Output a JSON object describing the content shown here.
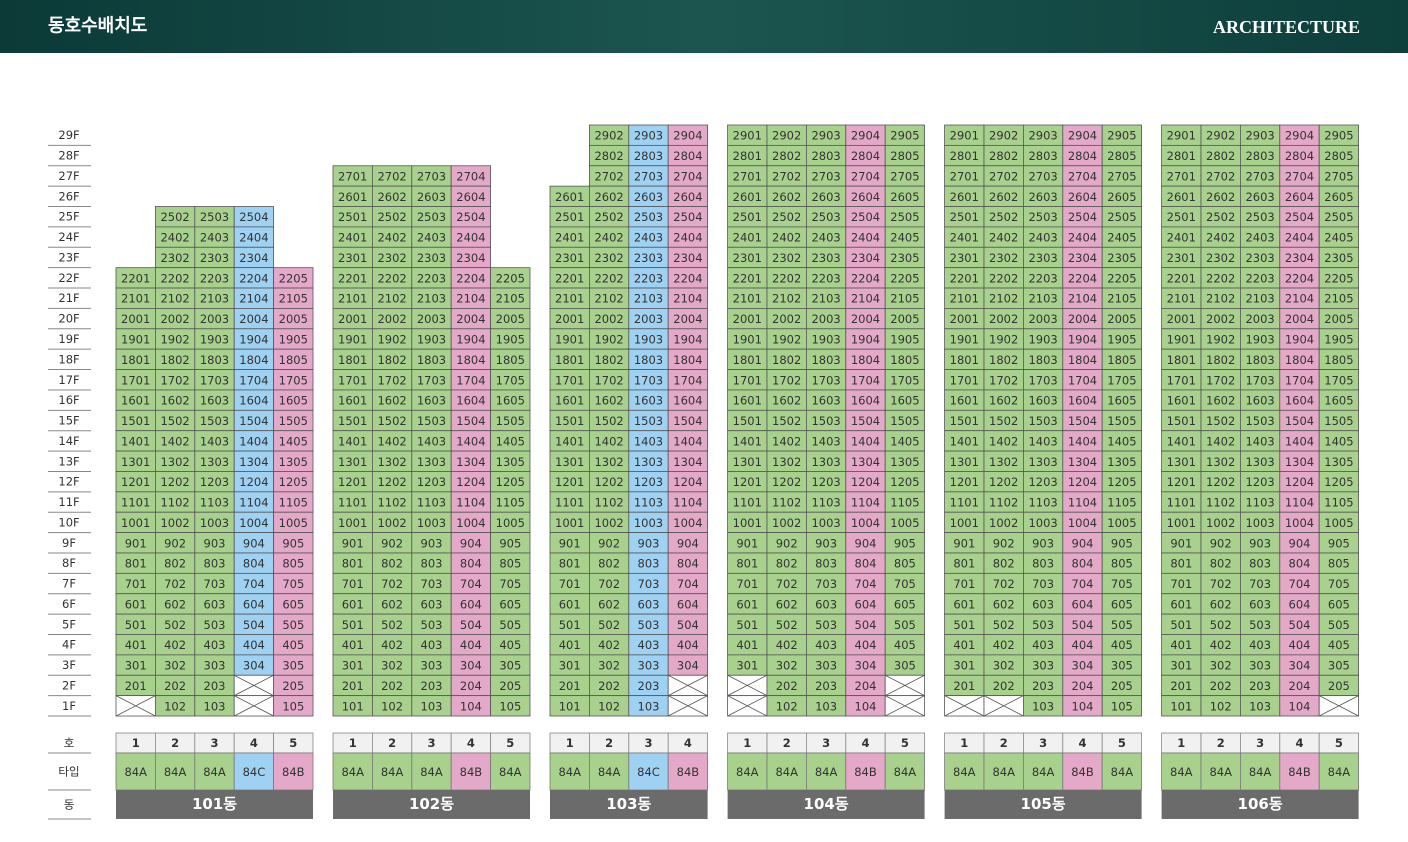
{
  "header": {
    "title": "동호수배치도",
    "subtitle": "ARCHITECTURE"
  },
  "labels": {
    "unit": "호",
    "type": "타입",
    "building": "동"
  },
  "type_colors": {
    "84A": "#a9d18e",
    "84B": "#e4a9c8",
    "84C": "#9fd2f2"
  },
  "floors": [
    "29F",
    "28F",
    "27F",
    "26F",
    "25F",
    "24F",
    "23F",
    "22F",
    "21F",
    "20F",
    "19F",
    "18F",
    "17F",
    "16F",
    "15F",
    "14F",
    "13F",
    "12F",
    "11F",
    "10F",
    "9F",
    "8F",
    "7F",
    "6F",
    "5F",
    "4F",
    "3F",
    "2F",
    "1F"
  ],
  "buildings": [
    {
      "name": "101동",
      "units": [
        "1",
        "2",
        "3",
        "4",
        "5"
      ],
      "types": [
        "84A",
        "84A",
        "84A",
        "84C",
        "84B"
      ],
      "columns": [
        [
          "2201",
          "2101",
          "2001",
          "1901",
          "1801",
          "1701",
          "1601",
          "1501",
          "1401",
          "1301",
          "1201",
          "1101",
          "1001",
          "901",
          "801",
          "701",
          "601",
          "501",
          "401",
          "301",
          "201",
          null
        ],
        [
          "2502",
          "2402",
          "2302",
          "2202",
          "2102",
          "2002",
          "1902",
          "1802",
          "1702",
          "1602",
          "1502",
          "1402",
          "1302",
          "1202",
          "1102",
          "1002",
          "902",
          "802",
          "702",
          "602",
          "502",
          "402",
          "302",
          "202",
          "102"
        ],
        [
          "2503",
          "2403",
          "2303",
          "2203",
          "2103",
          "2003",
          "1903",
          "1803",
          "1703",
          "1603",
          "1503",
          "1403",
          "1303",
          "1203",
          "1103",
          "1003",
          "903",
          "803",
          "703",
          "603",
          "503",
          "403",
          "303",
          "203",
          "103"
        ],
        [
          "2504",
          "2404",
          "2304",
          "2204",
          "2104",
          "2004",
          "1904",
          "1804",
          "1704",
          "1604",
          "1504",
          "1404",
          "1304",
          "1204",
          "1104",
          "1004",
          "904",
          "804",
          "704",
          "604",
          "504",
          "404",
          "304",
          null,
          null
        ],
        [
          "2205",
          "2105",
          "2005",
          "1905",
          "1805",
          "1705",
          "1605",
          "1505",
          "1405",
          "1305",
          "1205",
          "1105",
          "1005",
          "905",
          "805",
          "705",
          "605",
          "505",
          "405",
          "305",
          "205",
          "105"
        ]
      ]
    },
    {
      "name": "102동",
      "units": [
        "1",
        "2",
        "3",
        "4",
        "5"
      ],
      "types": [
        "84A",
        "84A",
        "84A",
        "84B",
        "84A"
      ],
      "columns": [
        [
          "2701",
          "2601",
          "2501",
          "2401",
          "2301",
          "2201",
          "2101",
          "2001",
          "1901",
          "1801",
          "1701",
          "1601",
          "1501",
          "1401",
          "1301",
          "1201",
          "1101",
          "1001",
          "901",
          "801",
          "701",
          "601",
          "501",
          "401",
          "301",
          "201",
          "101"
        ],
        [
          "2702",
          "2602",
          "2502",
          "2402",
          "2302",
          "2202",
          "2102",
          "2002",
          "1902",
          "1802",
          "1702",
          "1602",
          "1502",
          "1402",
          "1302",
          "1202",
          "1102",
          "1002",
          "902",
          "802",
          "702",
          "602",
          "502",
          "402",
          "302",
          "202",
          "102"
        ],
        [
          "2703",
          "2603",
          "2503",
          "2403",
          "2303",
          "2203",
          "2103",
          "2003",
          "1903",
          "1803",
          "1703",
          "1603",
          "1503",
          "1403",
          "1303",
          "1203",
          "1103",
          "1003",
          "903",
          "803",
          "703",
          "603",
          "503",
          "403",
          "303",
          "203",
          "103"
        ],
        [
          "2704",
          "2604",
          "2504",
          "2404",
          "2304",
          "2204",
          "2104",
          "2004",
          "1904",
          "1804",
          "1704",
          "1604",
          "1504",
          "1404",
          "1304",
          "1204",
          "1104",
          "1004",
          "904",
          "804",
          "704",
          "604",
          "504",
          "404",
          "304",
          "204",
          "104"
        ],
        [
          "2205",
          "2105",
          "2005",
          "1905",
          "1805",
          "1705",
          "1605",
          "1505",
          "1405",
          "1305",
          "1205",
          "1105",
          "1005",
          "905",
          "805",
          "705",
          "605",
          "505",
          "405",
          "305",
          "205",
          "105"
        ]
      ]
    },
    {
      "name": "103동",
      "units": [
        "1",
        "2",
        "3",
        "4"
      ],
      "types": [
        "84A",
        "84A",
        "84C",
        "84B"
      ],
      "columns": [
        [
          "2601",
          "2501",
          "2401",
          "2301",
          "2201",
          "2101",
          "2001",
          "1901",
          "1801",
          "1701",
          "1601",
          "1501",
          "1401",
          "1301",
          "1201",
          "1101",
          "1001",
          "901",
          "801",
          "701",
          "601",
          "501",
          "401",
          "301",
          "201",
          "101"
        ],
        [
          "2902",
          "2802",
          "2702",
          "2602",
          "2502",
          "2402",
          "2302",
          "2202",
          "2102",
          "2002",
          "1902",
          "1802",
          "1702",
          "1602",
          "1502",
          "1402",
          "1302",
          "1202",
          "1102",
          "1002",
          "902",
          "802",
          "702",
          "602",
          "502",
          "402",
          "302",
          "202",
          "102"
        ],
        [
          "2903",
          "2803",
          "2703",
          "2603",
          "2503",
          "2403",
          "2303",
          "2203",
          "2103",
          "2003",
          "1903",
          "1803",
          "1703",
          "1603",
          "1503",
          "1403",
          "1303",
          "1203",
          "1103",
          "1003",
          "903",
          "803",
          "703",
          "603",
          "503",
          "403",
          "303",
          "203",
          "103"
        ],
        [
          "2904",
          "2804",
          "2704",
          "2604",
          "2504",
          "2404",
          "2304",
          "2204",
          "2104",
          "2004",
          "1904",
          "1804",
          "1704",
          "1604",
          "1504",
          "1404",
          "1304",
          "1204",
          "1104",
          "1004",
          "904",
          "804",
          "704",
          "604",
          "504",
          "404",
          "304",
          null,
          null
        ]
      ]
    },
    {
      "name": "104동",
      "units": [
        "1",
        "2",
        "3",
        "4",
        "5"
      ],
      "types": [
        "84A",
        "84A",
        "84A",
        "84B",
        "84A"
      ],
      "columns": [
        [
          "2901",
          "2801",
          "2701",
          "2601",
          "2501",
          "2401",
          "2301",
          "2201",
          "2101",
          "2001",
          "1901",
          "1801",
          "1701",
          "1601",
          "1501",
          "1401",
          "1301",
          "1201",
          "1101",
          "1001",
          "901",
          "801",
          "701",
          "601",
          "501",
          "401",
          "301",
          null,
          null
        ],
        [
          "2902",
          "2802",
          "2702",
          "2602",
          "2502",
          "2402",
          "2302",
          "2202",
          "2102",
          "2002",
          "1902",
          "1802",
          "1702",
          "1602",
          "1502",
          "1402",
          "1302",
          "1202",
          "1102",
          "1002",
          "902",
          "802",
          "702",
          "602",
          "502",
          "402",
          "302",
          "202",
          "102"
        ],
        [
          "2903",
          "2803",
          "2703",
          "2603",
          "2503",
          "2403",
          "2303",
          "2203",
          "2103",
          "2003",
          "1903",
          "1803",
          "1703",
          "1603",
          "1503",
          "1403",
          "1303",
          "1203",
          "1103",
          "1003",
          "903",
          "803",
          "703",
          "603",
          "503",
          "403",
          "303",
          "203",
          "103"
        ],
        [
          "2904",
          "2804",
          "2704",
          "2604",
          "2504",
          "2404",
          "2304",
          "2204",
          "2104",
          "2004",
          "1904",
          "1804",
          "1704",
          "1604",
          "1504",
          "1404",
          "1304",
          "1204",
          "1104",
          "1004",
          "904",
          "804",
          "704",
          "604",
          "504",
          "404",
          "304",
          "204",
          "104"
        ],
        [
          "2905",
          "2805",
          "2705",
          "2605",
          "2505",
          "2405",
          "2305",
          "2205",
          "2105",
          "2005",
          "1905",
          "1805",
          "1705",
          "1605",
          "1505",
          "1405",
          "1305",
          "1205",
          "1105",
          "1005",
          "905",
          "805",
          "705",
          "605",
          "505",
          "405",
          "305",
          null,
          null
        ]
      ]
    },
    {
      "name": "105동",
      "units": [
        "1",
        "2",
        "3",
        "4",
        "5"
      ],
      "types": [
        "84A",
        "84A",
        "84A",
        "84B",
        "84A"
      ],
      "columns": [
        [
          "2901",
          "2801",
          "2701",
          "2601",
          "2501",
          "2401",
          "2301",
          "2201",
          "2101",
          "2001",
          "1901",
          "1801",
          "1701",
          "1601",
          "1501",
          "1401",
          "1301",
          "1201",
          "1101",
          "1001",
          "901",
          "801",
          "701",
          "601",
          "501",
          "401",
          "301",
          "201",
          null
        ],
        [
          "2902",
          "2802",
          "2702",
          "2602",
          "2502",
          "2402",
          "2302",
          "2202",
          "2102",
          "2002",
          "1902",
          "1802",
          "1702",
          "1602",
          "1502",
          "1402",
          "1302",
          "1202",
          "1102",
          "1002",
          "902",
          "802",
          "702",
          "602",
          "502",
          "402",
          "302",
          "202",
          null
        ],
        [
          "2903",
          "2803",
          "2703",
          "2603",
          "2503",
          "2403",
          "2303",
          "2203",
          "2103",
          "2003",
          "1903",
          "1803",
          "1703",
          "1603",
          "1503",
          "1403",
          "1303",
          "1203",
          "1103",
          "1003",
          "903",
          "803",
          "703",
          "603",
          "503",
          "403",
          "303",
          "203",
          "103"
        ],
        [
          "2904",
          "2804",
          "2704",
          "2604",
          "2504",
          "2404",
          "2304",
          "2204",
          "2104",
          "2004",
          "1904",
          "1804",
          "1704",
          "1604",
          "1504",
          "1404",
          "1304",
          "1204",
          "1104",
          "1004",
          "904",
          "804",
          "704",
          "604",
          "504",
          "404",
          "304",
          "204",
          "104"
        ],
        [
          "2905",
          "2805",
          "2705",
          "2605",
          "2505",
          "2405",
          "2305",
          "2205",
          "2105",
          "2005",
          "1905",
          "1805",
          "1705",
          "1605",
          "1505",
          "1405",
          "1305",
          "1205",
          "1105",
          "1005",
          "905",
          "805",
          "705",
          "605",
          "505",
          "405",
          "305",
          "205",
          "105"
        ]
      ]
    },
    {
      "name": "106동",
      "units": [
        "1",
        "2",
        "3",
        "4",
        "5"
      ],
      "types": [
        "84A",
        "84A",
        "84A",
        "84B",
        "84A"
      ],
      "columns": [
        [
          "2901",
          "2801",
          "2701",
          "2601",
          "2501",
          "2401",
          "2301",
          "2201",
          "2101",
          "2001",
          "1901",
          "1801",
          "1701",
          "1601",
          "1501",
          "1401",
          "1301",
          "1201",
          "1101",
          "1001",
          "901",
          "801",
          "701",
          "601",
          "501",
          "401",
          "301",
          "201",
          "101"
        ],
        [
          "2902",
          "2802",
          "2702",
          "2602",
          "2502",
          "2402",
          "2302",
          "2202",
          "2102",
          "2002",
          "1902",
          "1802",
          "1702",
          "1602",
          "1502",
          "1402",
          "1302",
          "1202",
          "1102",
          "1002",
          "902",
          "802",
          "702",
          "602",
          "502",
          "402",
          "302",
          "202",
          "102"
        ],
        [
          "2903",
          "2803",
          "2703",
          "2603",
          "2503",
          "2403",
          "2303",
          "2203",
          "2103",
          "2003",
          "1903",
          "1803",
          "1703",
          "1603",
          "1503",
          "1403",
          "1303",
          "1203",
          "1103",
          "1003",
          "903",
          "803",
          "703",
          "603",
          "503",
          "403",
          "303",
          "203",
          "103"
        ],
        [
          "2904",
          "2804",
          "2704",
          "2604",
          "2504",
          "2404",
          "2304",
          "2204",
          "2104",
          "2004",
          "1904",
          "1804",
          "1704",
          "1604",
          "1504",
          "1404",
          "1304",
          "1204",
          "1104",
          "1004",
          "904",
          "804",
          "704",
          "604",
          "504",
          "404",
          "304",
          "204",
          "104"
        ],
        [
          "2905",
          "2805",
          "2705",
          "2605",
          "2505",
          "2405",
          "2305",
          "2205",
          "2105",
          "2005",
          "1905",
          "1805",
          "1705",
          "1605",
          "1505",
          "1405",
          "1305",
          "1205",
          "1105",
          "1005",
          "905",
          "805",
          "705",
          "605",
          "505",
          "405",
          "305",
          "205",
          null
        ]
      ]
    }
  ]
}
